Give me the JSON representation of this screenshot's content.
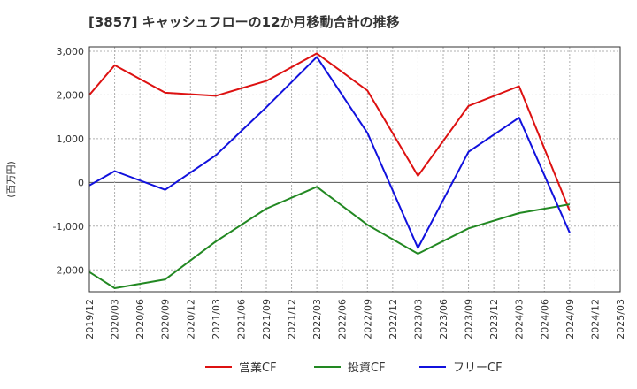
{
  "chart_data": {
    "type": "line",
    "title": "[3857]  キャッシュフローの12か月移動合計の推移",
    "ylabel": "(百万円)",
    "xlabel": "",
    "ylim": [
      -2500,
      3100
    ],
    "yticks": [
      3000,
      2000,
      1000,
      0,
      -1000,
      -2000
    ],
    "ytick_labels": [
      "3,000",
      "2,000",
      "1,000",
      "0",
      "-1,000",
      "-2,000"
    ],
    "x": [
      "2019/12",
      "2020/03",
      "2020/06",
      "2020/09",
      "2020/12",
      "2021/03",
      "2021/06",
      "2021/09",
      "2021/12",
      "2022/03",
      "2022/06",
      "2022/09",
      "2022/12",
      "2023/03",
      "2023/06",
      "2023/09",
      "2023/12",
      "2024/03",
      "2024/06",
      "2024/09",
      "2024/12",
      "2025/03"
    ],
    "series": [
      {
        "name": "営業CF",
        "color": "#dd1111",
        "values": [
          2000,
          2680,
          null,
          2050,
          null,
          1980,
          null,
          2320,
          null,
          2950,
          null,
          2100,
          null,
          150,
          null,
          1750,
          null,
          2200,
          null,
          -650,
          null,
          null
        ]
      },
      {
        "name": "投資CF",
        "color": "#228822",
        "values": [
          -2050,
          -2420,
          null,
          -2220,
          null,
          -1350,
          null,
          -600,
          null,
          -100,
          null,
          -970,
          null,
          -1630,
          null,
          -1050,
          null,
          -700,
          null,
          -500,
          null,
          null
        ]
      },
      {
        "name": "フリーCF",
        "color": "#1111dd",
        "values": [
          -70,
          260,
          null,
          -170,
          null,
          620,
          null,
          1720,
          null,
          2870,
          null,
          1130,
          null,
          -1500,
          null,
          700,
          null,
          1480,
          null,
          -1150,
          null,
          null
        ]
      }
    ],
    "grid": true,
    "legend_position": "bottom-center"
  }
}
